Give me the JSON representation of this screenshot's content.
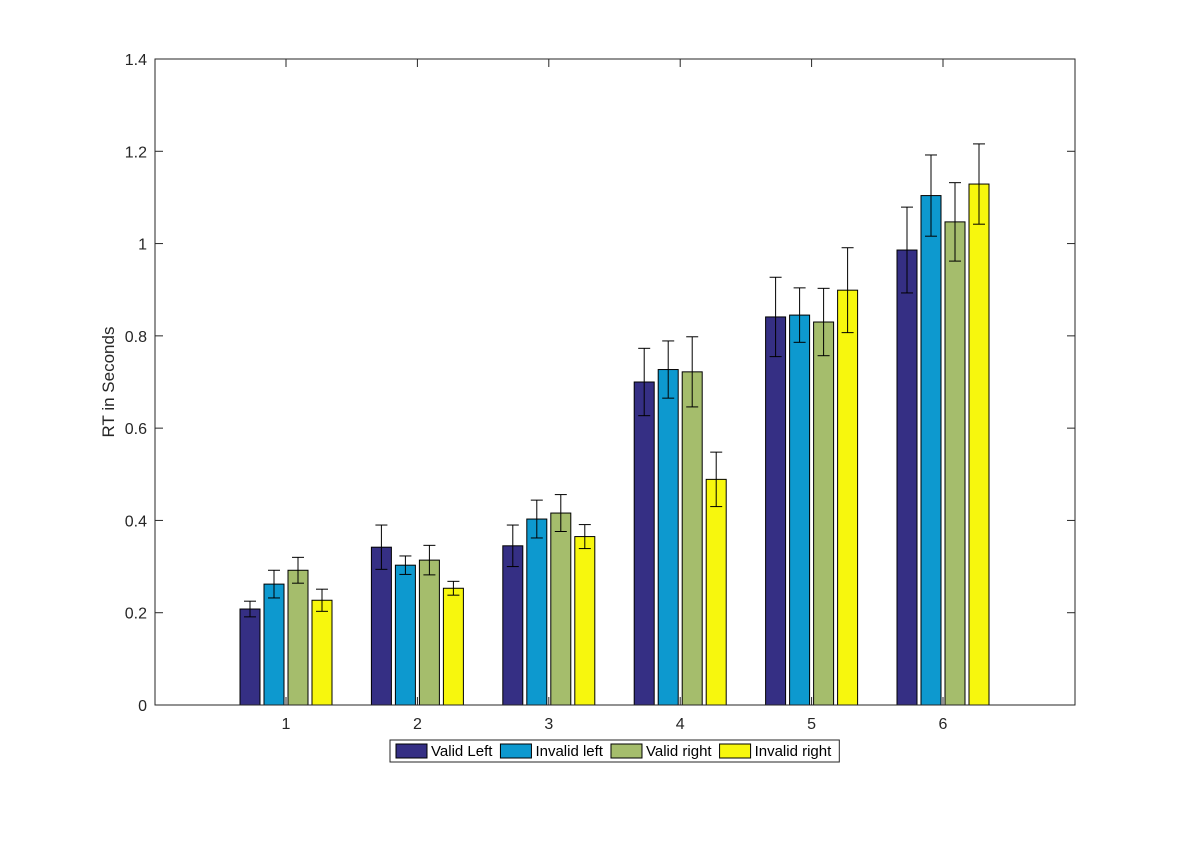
{
  "chart_data": {
    "type": "bar",
    "title": "",
    "xlabel": "",
    "ylabel": "RT in Seconds",
    "categories": [
      "1",
      "2",
      "3",
      "4",
      "5",
      "6"
    ],
    "ylim": [
      0,
      1.4
    ],
    "yticks": [
      "0",
      "0.2",
      "0.4",
      "0.6",
      "0.8",
      "1",
      "1.2",
      "1.4"
    ],
    "grid": false,
    "legend_position": "bottom",
    "series": [
      {
        "name": "Valid Left",
        "color": "#352f84",
        "values": [
          0.208,
          0.342,
          0.345,
          0.7,
          0.841,
          0.986
        ],
        "errors": [
          0.017,
          0.048,
          0.045,
          0.073,
          0.086,
          0.093
        ]
      },
      {
        "name": "Invalid left",
        "color": "#0d99cf",
        "values": [
          0.262,
          0.303,
          0.403,
          0.727,
          0.845,
          1.104
        ],
        "errors": [
          0.03,
          0.02,
          0.041,
          0.062,
          0.059,
          0.088
        ]
      },
      {
        "name": "Valid right",
        "color": "#a5bd6c",
        "values": [
          0.292,
          0.314,
          0.416,
          0.722,
          0.83,
          1.047
        ],
        "errors": [
          0.028,
          0.032,
          0.04,
          0.076,
          0.073,
          0.085
        ]
      },
      {
        "name": "Invalid right",
        "color": "#f7f70d",
        "values": [
          0.227,
          0.253,
          0.365,
          0.489,
          0.899,
          1.129
        ],
        "errors": [
          0.024,
          0.015,
          0.026,
          0.059,
          0.092,
          0.087
        ]
      }
    ]
  }
}
